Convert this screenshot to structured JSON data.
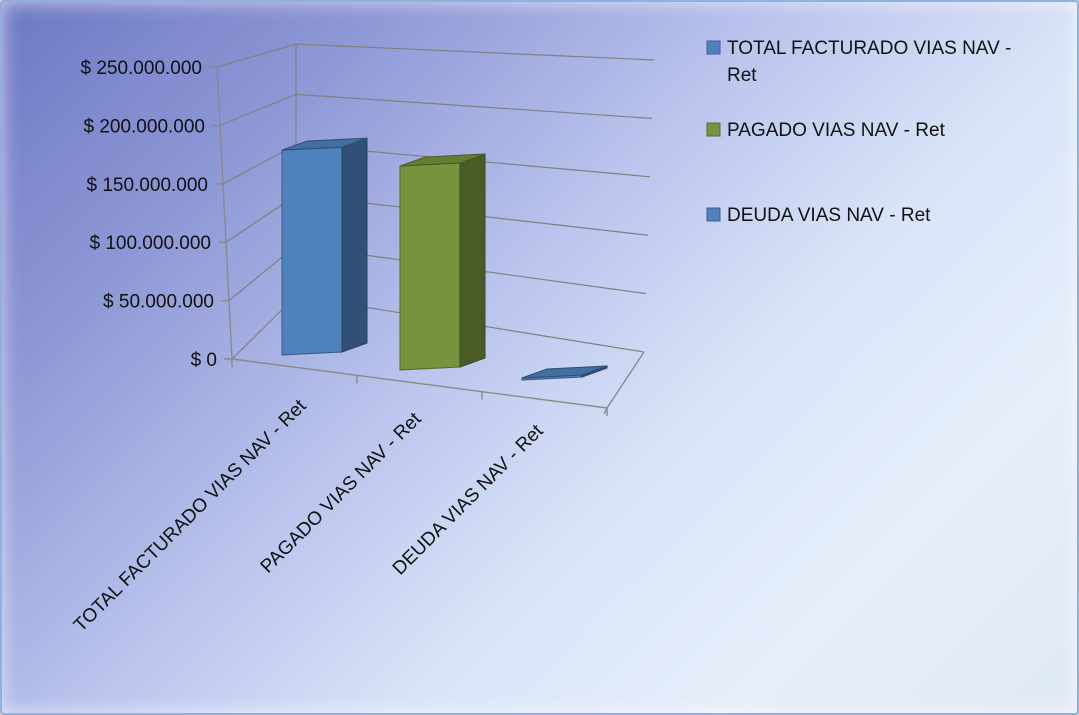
{
  "chart_data": {
    "type": "bar",
    "categories": [
      "TOTAL FACTURADO VIAS NAV - Ret",
      "PAGADO VIAS NAV - Ret",
      "DEUDA VIAS NAV - Ret"
    ],
    "series": [
      {
        "name": "TOTAL FACTURADO VIAS NAV - Ret",
        "color": "#4f81bd",
        "values": [
          207000000,
          null,
          null
        ]
      },
      {
        "name": "PAGADO VIAS NAV - Ret",
        "color": "#77933c",
        "values": [
          null,
          206000000,
          null
        ]
      },
      {
        "name": "DEUDA VIAS NAV - Ret",
        "color": "#4f81bd",
        "values": [
          null,
          null,
          1000000
        ]
      }
    ],
    "y_tick_labels": [
      "$ 0",
      "$ 50.000.000",
      "$ 100.000.000",
      "$ 150.000.000",
      "$ 200.000.000",
      "$ 250.000.000"
    ],
    "ylim": [
      0,
      250000000
    ],
    "grid": true,
    "legend_position": "top-right",
    "style": "3d-column",
    "legend": [
      {
        "lines": [
          "TOTAL FACTURADO VIAS NAV -",
          "Ret"
        ],
        "color": "#4f81bd"
      },
      {
        "lines": [
          "PAGADO VIAS NAV - Ret"
        ],
        "color": "#77933c"
      },
      {
        "lines": [
          "DEUDA VIAS NAV - Ret"
        ],
        "color": "#4f81bd"
      }
    ]
  }
}
